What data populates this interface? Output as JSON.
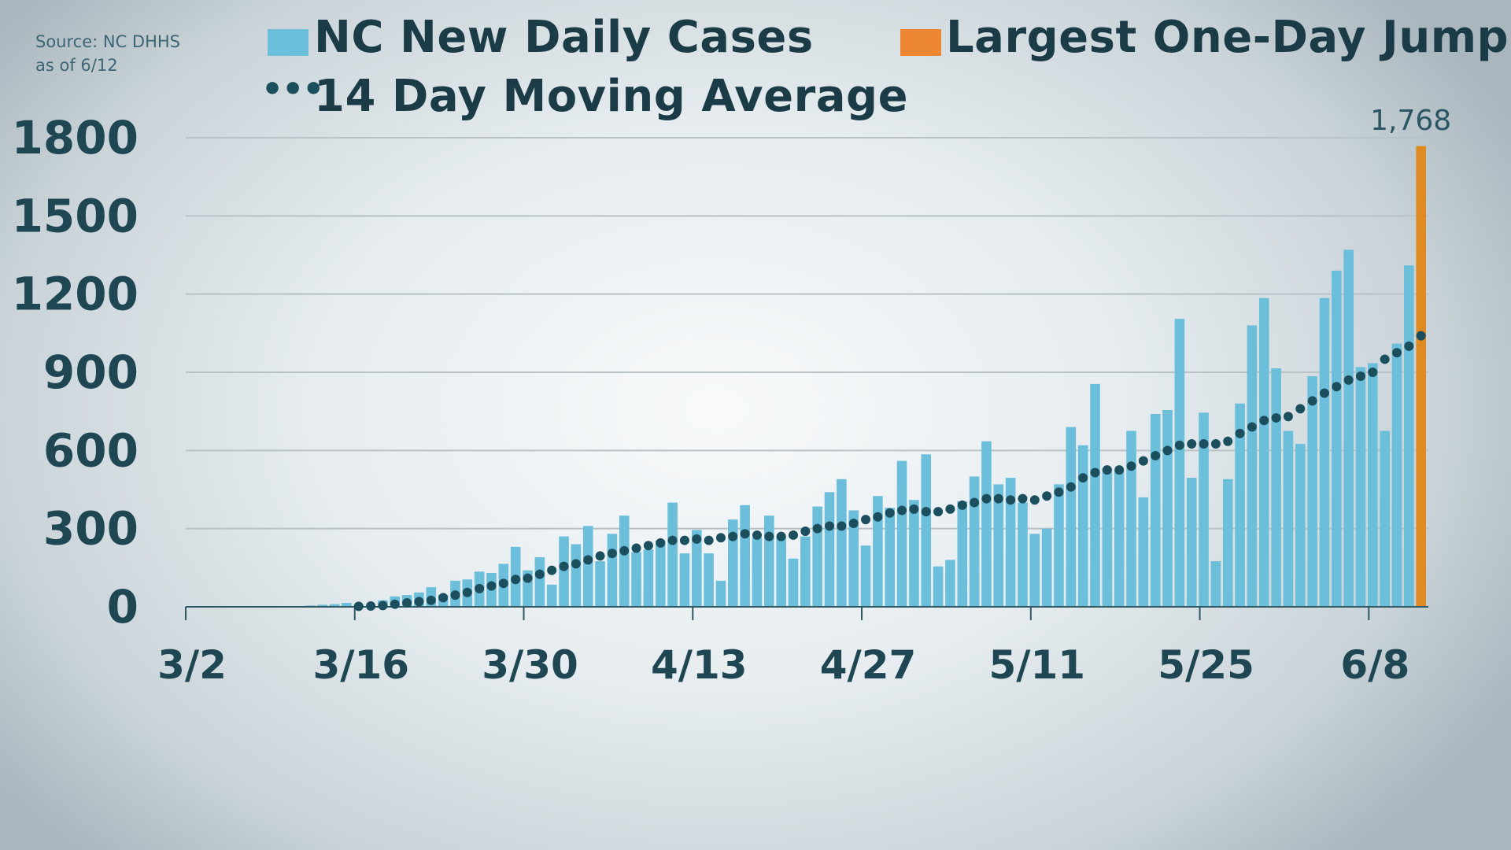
{
  "source": {
    "line1": "Source: NC DHHS",
    "line2": "as of 6/12"
  },
  "legend": {
    "daily": "NC New Daily Cases",
    "jump": "Largest One-Day Jump",
    "average": "14 Day Moving Average",
    "average_marker": "•••"
  },
  "colors": {
    "daily": "#6bbfdb",
    "jump": "#e08a22",
    "average": "#1b4f5e",
    "text": "#1f4653",
    "grid": "#b9c2c6"
  },
  "chart_data": {
    "type": "bar",
    "ylim": [
      0,
      1800
    ],
    "yticks": [
      "0",
      "300",
      "600",
      "900",
      "1200",
      "1500",
      "1800"
    ],
    "grid": true,
    "legend_placement": "top",
    "xtick_labels": [
      "3/2",
      "3/16",
      "3/30",
      "4/13",
      "4/27",
      "5/11",
      "5/25",
      "6/8"
    ],
    "start_date": "3/2",
    "end_date": "6/12",
    "series": [
      {
        "name": "NC New Daily Cases",
        "type": "bar",
        "values": [
          0,
          1,
          0,
          0,
          1,
          0,
          0,
          0,
          2,
          3,
          5,
          8,
          10,
          15,
          8,
          5,
          25,
          40,
          45,
          55,
          75,
          45,
          100,
          105,
          135,
          130,
          165,
          230,
          140,
          190,
          85,
          270,
          240,
          310,
          175,
          280,
          350,
          210,
          220,
          255,
          400,
          205,
          295,
          205,
          100,
          335,
          390,
          265,
          350,
          270,
          185,
          270,
          385,
          440,
          490,
          370,
          235,
          425,
          380,
          560,
          410,
          585,
          155,
          180,
          405,
          500,
          635,
          470,
          495,
          400,
          280,
          300,
          470,
          690,
          620,
          855,
          530,
          520,
          675,
          420,
          740,
          755,
          1105,
          495,
          745,
          175,
          490,
          780,
          1080,
          1185,
          915,
          675,
          625,
          885,
          1185,
          1290,
          1370,
          920,
          935,
          675,
          1010,
          1310,
          1768
        ]
      },
      {
        "name": "14 Day Moving Average",
        "type": "dotted-line",
        "start_date": "3/16",
        "values": [
          2,
          3,
          5,
          10,
          15,
          20,
          25,
          35,
          45,
          55,
          70,
          80,
          90,
          105,
          110,
          125,
          140,
          155,
          165,
          180,
          195,
          205,
          215,
          225,
          235,
          245,
          255,
          255,
          260,
          255,
          265,
          270,
          280,
          275,
          270,
          270,
          275,
          290,
          300,
          310,
          310,
          320,
          335,
          345,
          360,
          370,
          375,
          365,
          365,
          375,
          390,
          400,
          415,
          415,
          410,
          415,
          410,
          425,
          440,
          460,
          495,
          515,
          525,
          525,
          540,
          560,
          580,
          600,
          620,
          625,
          625,
          625,
          635,
          665,
          690,
          715,
          725,
          730,
          760,
          790,
          820,
          845,
          870,
          885,
          900,
          950,
          975,
          1000,
          1040
        ]
      }
    ],
    "highlight": {
      "name": "Largest One-Day Jump",
      "date": "6/12",
      "value": 1768,
      "label": "1,768"
    }
  }
}
